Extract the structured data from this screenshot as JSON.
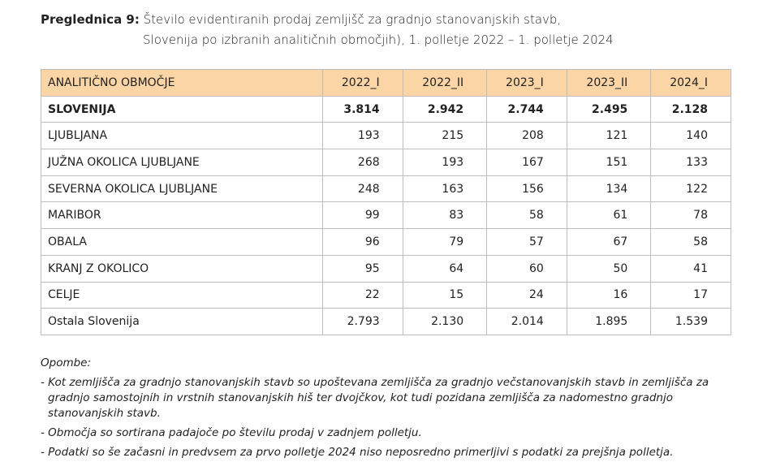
{
  "title": {
    "label": "Preglednica 9:",
    "line1": "Število evidentiranih prodaj zemljišč za gradnjo stanovanjskih stavb,",
    "line2": "Slovenija po izbranih analitičnih območjih), 1. polletje 2022 – 1. polletje 2024"
  },
  "table": {
    "header_color": "#fcd5a6",
    "headers": [
      "ANALITIČNO OBMOČJE",
      "2022_I",
      "2022_II",
      "2023_I",
      "2023_II",
      "2024_I"
    ],
    "rows": [
      [
        "SLOVENIJA",
        "3.814",
        "2.942",
        "2.744",
        "2.495",
        "2.128"
      ],
      [
        "LJUBLJANA",
        "193",
        "215",
        "208",
        "121",
        "140"
      ],
      [
        "JUŽNA OKOLICA LJUBLJANE",
        "268",
        "193",
        "167",
        "151",
        "133"
      ],
      [
        "SEVERNA OKOLICA LJUBLJANE",
        "248",
        "163",
        "156",
        "134",
        "122"
      ],
      [
        "MARIBOR",
        "99",
        "83",
        "58",
        "61",
        "78"
      ],
      [
        "OBALA",
        "96",
        "79",
        "57",
        "67",
        "58"
      ],
      [
        "KRANJ Z OKOLICO",
        "95",
        "64",
        "60",
        "50",
        "41"
      ],
      [
        "CELJE",
        "22",
        "15",
        "24",
        "16",
        "17"
      ],
      [
        "Ostala Slovenija",
        "2.793",
        "2.130",
        "2.014",
        "1.895",
        "1.539"
      ]
    ]
  },
  "notes": {
    "heading": "Opombe:",
    "items": [
      "- Kot zemljišča za gradnjo stanovanjskih stavb so upoštevana zemljišča za gradnjo večstanovanjskih stavb in zemljišča za gradnjo samostojnih in vrstnih stanovanjskih hiš ter dvojčkov, kot tudi pozidana zemljišča za nadomestno gradnjo stanovanjskih stavb.",
      "- Območja so sortirana padajoče po številu prodaj v zadnjem polletju.",
      "- Podatki so še začasni in predvsem za prvo polletje 2024 niso neposredno primerljivi s podatki za prejšnja polletja."
    ]
  }
}
